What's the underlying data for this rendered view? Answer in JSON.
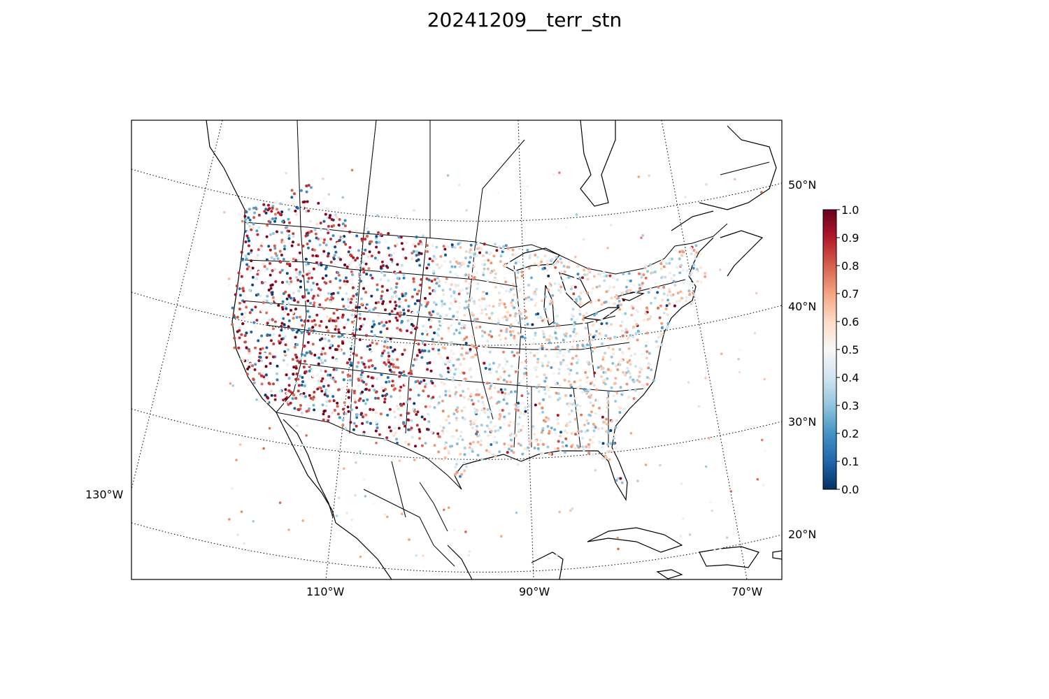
{
  "title": "20241209__terr_stn",
  "map": {
    "projection": "lambert-conformal",
    "lat_labels": [
      "50°N",
      "40°N",
      "30°N",
      "20°N"
    ],
    "lon_labels": [
      "130°W",
      "110°W",
      "90°W",
      "70°W"
    ],
    "coastline_color": "#000000",
    "gridline_style": "dotted"
  },
  "colorbar": {
    "colormap": "RdBu_r",
    "range": [
      0.0,
      1.0
    ],
    "tick_labels": [
      "1.0",
      "0.9",
      "0.8",
      "0.7",
      "0.6",
      "0.5",
      "0.4",
      "0.3",
      "0.2",
      "0.1",
      "0.0"
    ],
    "low_color": "#053061",
    "mid_color": "#f7f7f7",
    "high_color": "#67001f"
  },
  "stations": {
    "marker": "small-circle",
    "value_range": [
      0.0,
      1.0
    ]
  }
}
